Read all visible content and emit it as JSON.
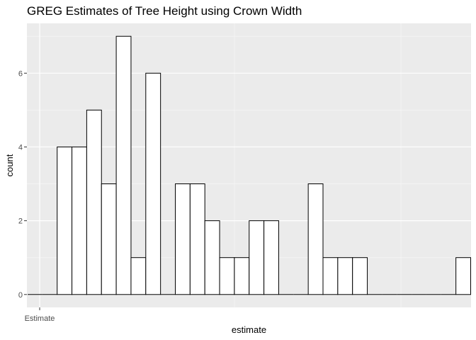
{
  "chart_data": {
    "type": "bar",
    "title": "GREG Estimates of Tree Height using Crown Width",
    "xlabel": "estimate",
    "ylabel": "count",
    "x_tick_labels": [
      "Estimate"
    ],
    "y_ticks": [
      0,
      2,
      4,
      6
    ],
    "ylim": [
      -0.35,
      7.35
    ],
    "grid": true,
    "bins": 30,
    "values": [
      0,
      0,
      4,
      4,
      5,
      3,
      7,
      1,
      6,
      0,
      3,
      3,
      2,
      1,
      1,
      2,
      2,
      0,
      0,
      3,
      1,
      1,
      1,
      0,
      0,
      0,
      0,
      0,
      0,
      1
    ],
    "colors": {
      "panel_background": "#ebebeb",
      "grid_major": "#ffffff",
      "grid_minor": "#f5f5f5",
      "bar_fill": "#ffffff",
      "bar_outline": "#000000"
    }
  }
}
